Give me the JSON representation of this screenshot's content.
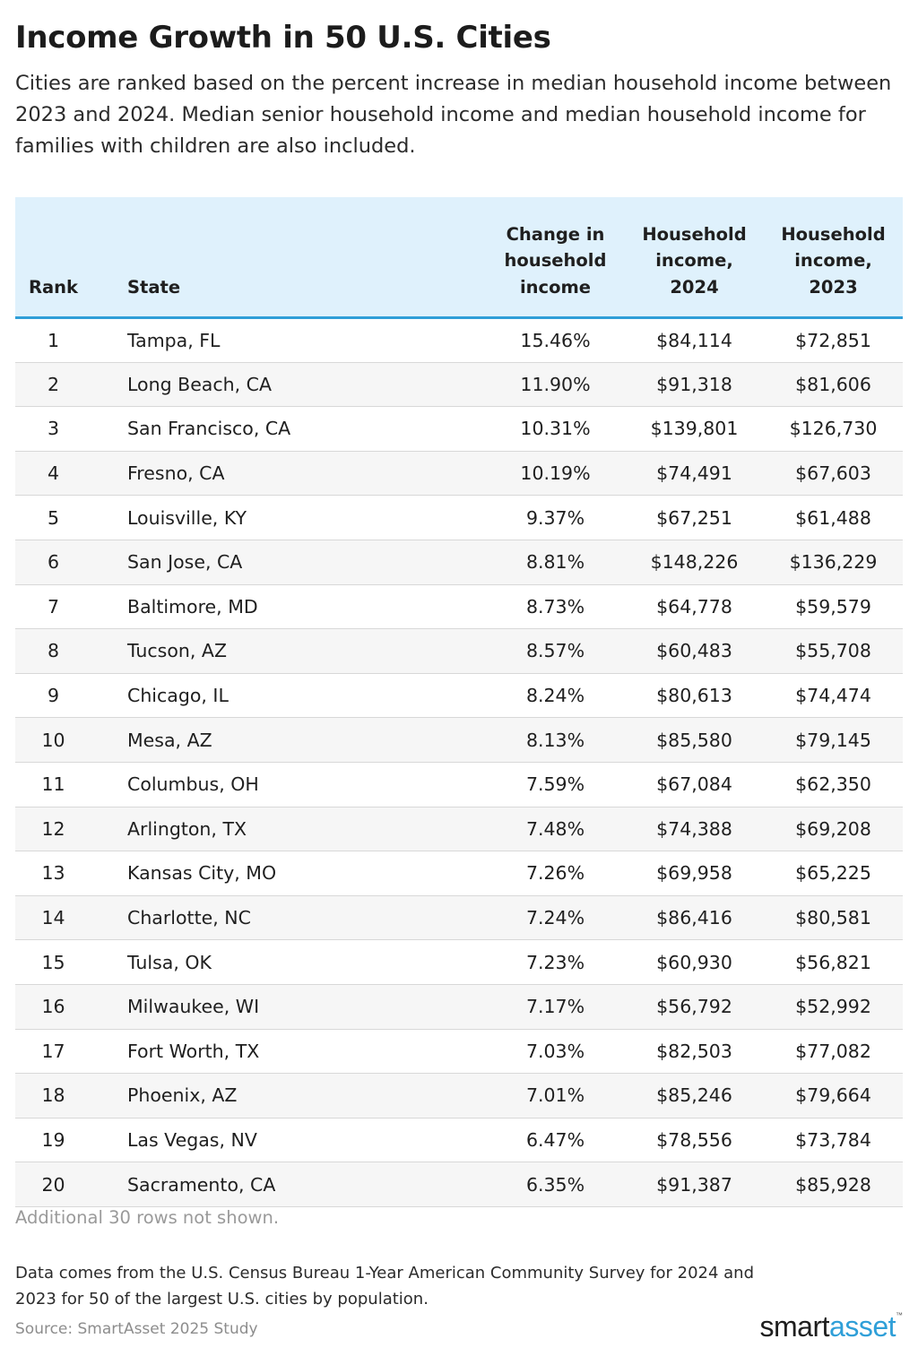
{
  "chart_data": {
    "type": "table",
    "title": "Income Growth in 50 U.S. Cities",
    "subtitle": "Cities are ranked based on the percent increase in median household income between 2023 and 2024. Median senior household income and median household income for families with children are also included.",
    "columns": [
      "Rank",
      "State",
      "Change in household income",
      "Household income, 2024",
      "Household income, 2023"
    ],
    "rows": [
      [
        "1",
        "Tampa, FL",
        "15.46%",
        "$84,114",
        "$72,851"
      ],
      [
        "2",
        "Long Beach, CA",
        "11.90%",
        "$91,318",
        "$81,606"
      ],
      [
        "3",
        "San Francisco, CA",
        "10.31%",
        "$139,801",
        "$126,730"
      ],
      [
        "4",
        "Fresno, CA",
        "10.19%",
        "$74,491",
        "$67,603"
      ],
      [
        "5",
        "Louisville, KY",
        "9.37%",
        "$67,251",
        "$61,488"
      ],
      [
        "6",
        "San Jose, CA",
        "8.81%",
        "$148,226",
        "$136,229"
      ],
      [
        "7",
        "Baltimore, MD",
        "8.73%",
        "$64,778",
        "$59,579"
      ],
      [
        "8",
        "Tucson, AZ",
        "8.57%",
        "$60,483",
        "$55,708"
      ],
      [
        "9",
        "Chicago, IL",
        "8.24%",
        "$80,613",
        "$74,474"
      ],
      [
        "10",
        "Mesa, AZ",
        "8.13%",
        "$85,580",
        "$79,145"
      ],
      [
        "11",
        "Columbus, OH",
        "7.59%",
        "$67,084",
        "$62,350"
      ],
      [
        "12",
        "Arlington, TX",
        "7.48%",
        "$74,388",
        "$69,208"
      ],
      [
        "13",
        "Kansas City, MO",
        "7.26%",
        "$69,958",
        "$65,225"
      ],
      [
        "14",
        "Charlotte, NC",
        "7.24%",
        "$86,416",
        "$80,581"
      ],
      [
        "15",
        "Tulsa, OK",
        "7.23%",
        "$60,930",
        "$56,821"
      ],
      [
        "16",
        "Milwaukee, WI",
        "7.17%",
        "$56,792",
        "$52,992"
      ],
      [
        "17",
        "Fort Worth, TX",
        "7.03%",
        "$82,503",
        "$77,082"
      ],
      [
        "18",
        "Phoenix, AZ",
        "7.01%",
        "$85,246",
        "$79,664"
      ],
      [
        "19",
        "Las Vegas, NV",
        "6.47%",
        "$78,556",
        "$73,784"
      ],
      [
        "20",
        "Sacramento, CA",
        "6.35%",
        "$91,387",
        "$85,928"
      ]
    ],
    "note": "Additional 30 rows not shown.",
    "footnote": "Data comes from the U.S. Census Bureau 1-Year American Community Survey for 2024 and 2023 for 50 of the largest U.S. cities by population.",
    "source": "Source: SmartAsset 2025 Study"
  },
  "brand": {
    "logo_part1": "smart",
    "logo_part2": "asset",
    "logo_tm": "™",
    "accent_color": "#2f9fd8",
    "header_bg": "#dff1fc"
  }
}
